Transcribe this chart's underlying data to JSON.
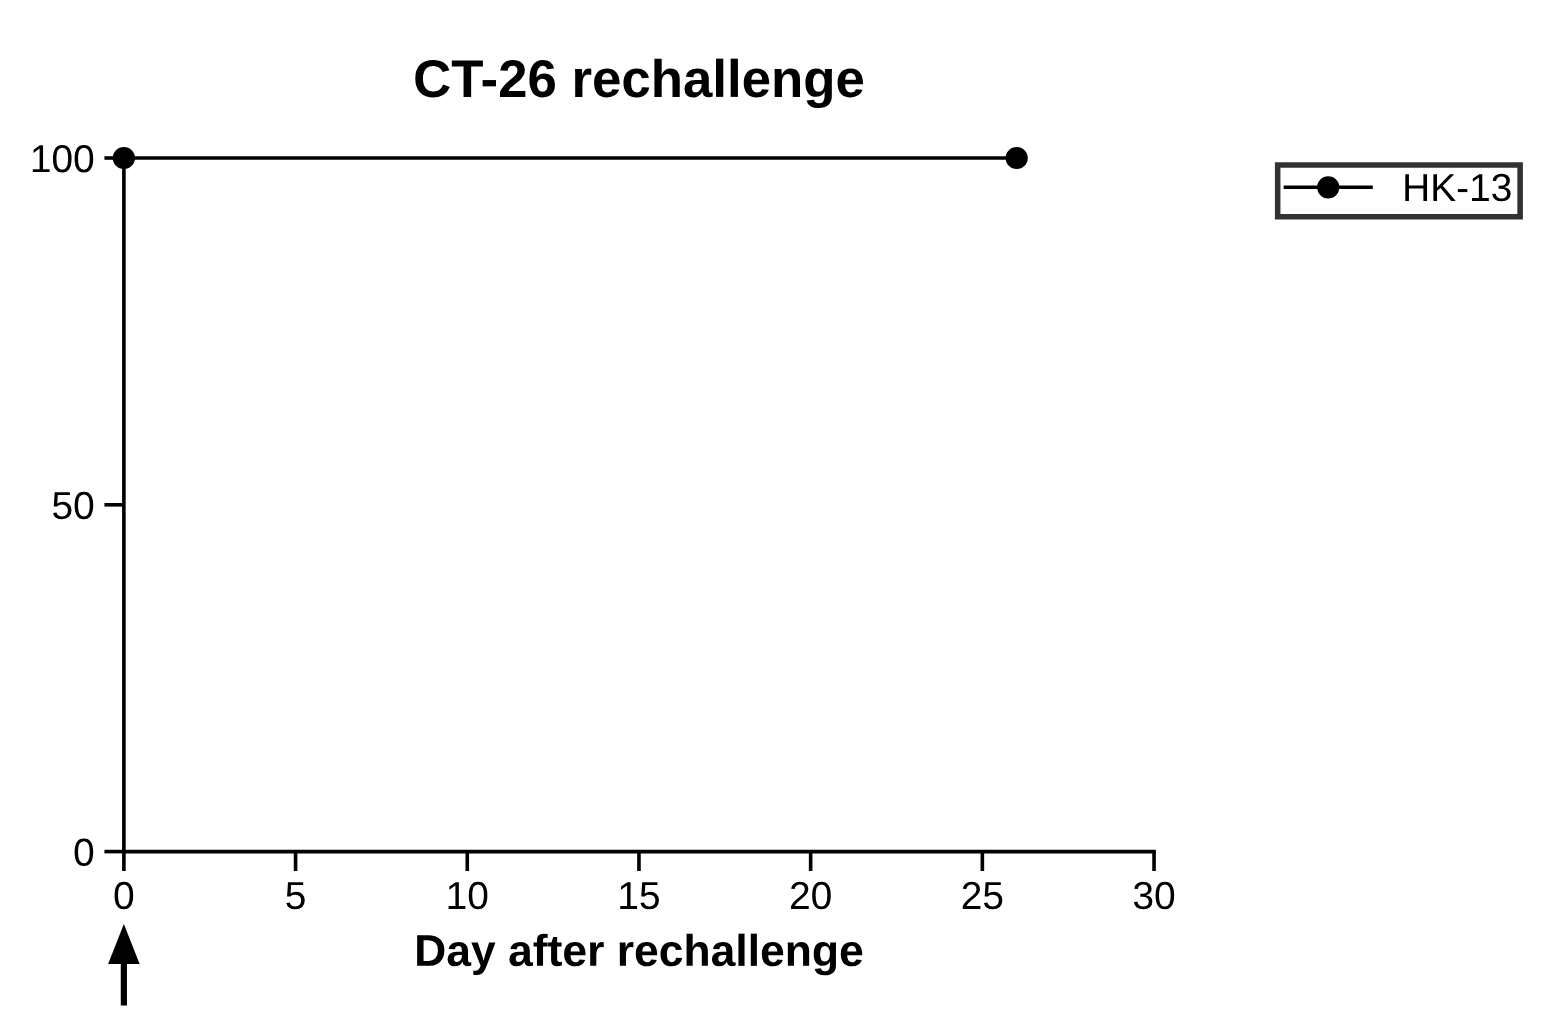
{
  "chart_data": {
    "type": "line",
    "title": "CT-26 rechallenge",
    "xlabel": "Day after rechallenge",
    "x": [
      0,
      26
    ],
    "series": [
      {
        "name": "HK-13",
        "color": "#000000",
        "values": [
          100,
          100
        ]
      }
    ],
    "xlim": [
      0,
      30
    ],
    "xticks": [
      0,
      5,
      10,
      15,
      20,
      25,
      30
    ],
    "ylim": [
      0,
      100
    ],
    "yticks": [
      0,
      50,
      100
    ],
    "marker": "circle",
    "line_style": "solid",
    "grid": false,
    "legend": "top right"
  }
}
